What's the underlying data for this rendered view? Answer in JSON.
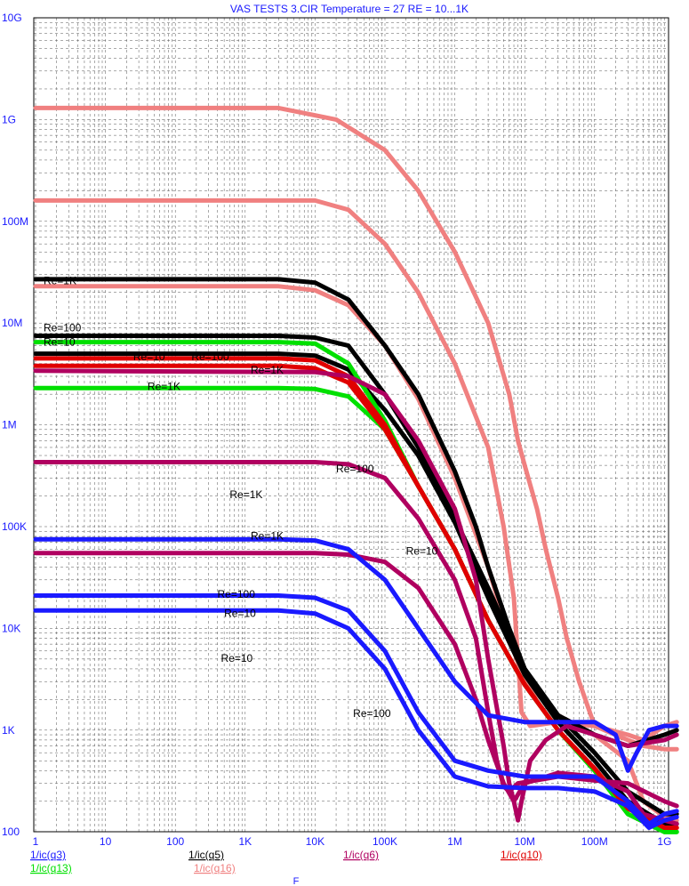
{
  "chart_data": {
    "type": "line",
    "title": "VAS TESTS 3.CIR Temperature = 27 RE = 10...1K",
    "xlabel": "F",
    "x_scale": "log",
    "y_scale": "log",
    "xlim": [
      1,
      1500000000
    ],
    "ylim": [
      100,
      10000000000
    ],
    "x_ticks": [
      "1",
      "10",
      "100",
      "1K",
      "10K",
      "100K",
      "1M",
      "10M",
      "100M",
      "1G"
    ],
    "y_ticks": [
      "10G",
      "1G",
      "100M",
      "10M",
      "1M",
      "100K",
      "10K",
      "1K",
      "100"
    ],
    "grid": true,
    "legend": [
      {
        "text": "1/ic(q3)",
        "color": "#1a1aff"
      },
      {
        "text": "1/ic(q5)",
        "color": "#000000"
      },
      {
        "text": "1/ic(q6)",
        "color": "#b00060"
      },
      {
        "text": "1/ic(q10)",
        "color": "#e00000"
      },
      {
        "text": "1/ic(q13)",
        "color": "#00e000"
      },
      {
        "text": "1/ic(q16)",
        "color": "#f08080"
      }
    ],
    "annotations": [
      {
        "text": "Re=1K",
        "x": 1.3,
        "y": 24000000
      },
      {
        "text": "Re=100",
        "x": 1.3,
        "y": 8300000
      },
      {
        "text": "Re=10",
        "x": 1.3,
        "y": 6000000
      },
      {
        "text": "Re=10",
        "x": 25,
        "y": 4300000
      },
      {
        "text": "Re=100",
        "x": 170,
        "y": 4300000
      },
      {
        "text": "Re=1K",
        "x": 1200,
        "y": 3200000
      },
      {
        "text": "Re=1K",
        "x": 40,
        "y": 2200000
      },
      {
        "text": "Re=100",
        "x": 20000,
        "y": 340000
      },
      {
        "text": "Re=1K",
        "x": 600,
        "y": 190000
      },
      {
        "text": "Re=1K",
        "x": 1200,
        "y": 75000
      },
      {
        "text": "Re=10",
        "x": 200000,
        "y": 53000
      },
      {
        "text": "Re=100",
        "x": 400,
        "y": 20000
      },
      {
        "text": "Re=10",
        "x": 500,
        "y": 13000
      },
      {
        "text": "Re=10",
        "x": 450,
        "y": 4700
      },
      {
        "text": "Re=100",
        "x": 35000,
        "y": 1350
      }
    ],
    "series": [
      {
        "color": "#f08080",
        "points": [
          [
            1,
            1300000000
          ],
          [
            3000,
            1300000000
          ],
          [
            20000,
            1000000000
          ],
          [
            100000,
            500000000
          ],
          [
            300000,
            200000000
          ],
          [
            1000000,
            50000000
          ],
          [
            3000000,
            10000000
          ],
          [
            6000000,
            2000000
          ],
          [
            8000000,
            700000
          ],
          [
            10000000,
            400000
          ],
          [
            15000000,
            150000
          ],
          [
            20000000,
            60000
          ],
          [
            30000000,
            20000
          ],
          [
            40000000,
            8000
          ],
          [
            60000000,
            3000
          ],
          [
            100000000,
            1100
          ],
          [
            300000000,
            800
          ],
          [
            500000000,
            700
          ],
          [
            1000000000,
            650
          ],
          [
            1500000000,
            650
          ]
        ]
      },
      {
        "color": "#f08080",
        "points": [
          [
            1,
            160000000
          ],
          [
            10000,
            160000000
          ],
          [
            30000,
            130000000
          ],
          [
            100000,
            60000000
          ],
          [
            300000,
            20000000
          ],
          [
            1000000,
            4000000
          ],
          [
            3000000,
            600000
          ],
          [
            5000000,
            100000
          ],
          [
            7000000,
            20000
          ],
          [
            8000000,
            5000
          ],
          [
            9000000,
            1500
          ],
          [
            12000000,
            1100
          ],
          [
            30000000,
            1200
          ],
          [
            100000000,
            1100
          ],
          [
            300000000,
            900
          ],
          [
            500000000,
            800
          ],
          [
            1000000000,
            1100
          ],
          [
            1500000000,
            1200
          ]
        ]
      },
      {
        "color": "#f08080",
        "points": [
          [
            1,
            23000000
          ],
          [
            3000,
            23000000
          ],
          [
            10000,
            21000000
          ],
          [
            30000,
            15000000
          ],
          [
            100000,
            6000000
          ],
          [
            300000,
            1800000
          ],
          [
            1000000,
            300000
          ],
          [
            3000000,
            40000
          ],
          [
            6000000,
            8000
          ],
          [
            10000000,
            3000
          ],
          [
            30000000,
            1400
          ],
          [
            100000000,
            900
          ],
          [
            300000000,
            500
          ],
          [
            500000000,
            200
          ],
          [
            1000000000,
            140
          ],
          [
            1500000000,
            130
          ]
        ]
      },
      {
        "color": "#000000",
        "points": [
          [
            1,
            27000000
          ],
          [
            3000,
            27000000
          ],
          [
            10000,
            25000000
          ],
          [
            30000,
            17000000
          ],
          [
            100000,
            6000000
          ],
          [
            300000,
            2000000
          ],
          [
            1000000,
            350000
          ],
          [
            2000000,
            100000
          ],
          [
            3000000,
            40000
          ],
          [
            6000000,
            10000
          ],
          [
            10000000,
            4000
          ],
          [
            30000000,
            1400
          ],
          [
            100000000,
            900
          ],
          [
            300000000,
            700
          ],
          [
            1000000000,
            900
          ],
          [
            1500000000,
            1000
          ]
        ]
      },
      {
        "color": "#000000",
        "points": [
          [
            1,
            7500000
          ],
          [
            3000,
            7500000
          ],
          [
            10000,
            7200000
          ],
          [
            30000,
            6000000
          ],
          [
            100000,
            2000000
          ],
          [
            300000,
            600000
          ],
          [
            1000000,
            120000
          ],
          [
            3000000,
            25000
          ],
          [
            10000000,
            4000
          ],
          [
            30000000,
            1400
          ],
          [
            100000000,
            600
          ],
          [
            300000000,
            250
          ],
          [
            1000000000,
            150
          ],
          [
            1500000000,
            150
          ]
        ]
      },
      {
        "color": "#000000",
        "points": [
          [
            1,
            5000000
          ],
          [
            3000,
            5000000
          ],
          [
            10000,
            4800000
          ],
          [
            30000,
            3500000
          ],
          [
            100000,
            1400000
          ],
          [
            300000,
            500000
          ],
          [
            1000000,
            110000
          ],
          [
            3000000,
            20000
          ],
          [
            10000000,
            3500
          ],
          [
            30000000,
            1200
          ],
          [
            100000000,
            500
          ],
          [
            300000000,
            200
          ],
          [
            1000000000,
            120
          ],
          [
            1500000000,
            120
          ]
        ]
      },
      {
        "color": "#00e000",
        "points": [
          [
            1,
            6500000
          ],
          [
            3000,
            6500000
          ],
          [
            10000,
            6300000
          ],
          [
            30000,
            4000000
          ],
          [
            100000,
            1100000
          ],
          [
            300000,
            250000
          ],
          [
            1000000,
            60000
          ],
          [
            3000000,
            12000
          ],
          [
            10000000,
            2800
          ],
          [
            30000000,
            1000
          ],
          [
            100000000,
            400
          ],
          [
            300000000,
            150
          ],
          [
            1000000000,
            100
          ],
          [
            1500000000,
            100
          ]
        ]
      },
      {
        "color": "#00e000",
        "points": [
          [
            1,
            2300000
          ],
          [
            3000,
            2300000
          ],
          [
            10000,
            2250000
          ],
          [
            30000,
            1900000
          ],
          [
            100000,
            900000
          ],
          [
            300000,
            250000
          ],
          [
            1000000,
            60000
          ],
          [
            3000000,
            12000
          ],
          [
            10000000,
            2800
          ],
          [
            30000000,
            1000
          ],
          [
            100000000,
            400
          ],
          [
            300000000,
            150
          ],
          [
            1000000000,
            100
          ],
          [
            1500000000,
            100
          ]
        ]
      },
      {
        "color": "#e00000",
        "points": [
          [
            1,
            4500000
          ],
          [
            3000,
            4500000
          ],
          [
            10000,
            4300000
          ],
          [
            30000,
            3000000
          ],
          [
            100000,
            1000000
          ],
          [
            300000,
            250000
          ],
          [
            1000000,
            60000
          ],
          [
            3000000,
            12000
          ],
          [
            10000000,
            2800
          ],
          [
            30000000,
            1000
          ],
          [
            100000000,
            420
          ],
          [
            300000000,
            170
          ],
          [
            1000000000,
            110
          ],
          [
            1500000000,
            110
          ]
        ]
      },
      {
        "color": "#e00000",
        "points": [
          [
            1,
            3800000
          ],
          [
            3000,
            3800000
          ],
          [
            10000,
            3600000
          ],
          [
            30000,
            2600000
          ],
          [
            100000,
            900000
          ],
          [
            300000,
            250000
          ],
          [
            1000000,
            60000
          ],
          [
            3000000,
            12000
          ],
          [
            10000000,
            2800
          ],
          [
            30000000,
            1000
          ],
          [
            100000000,
            420
          ],
          [
            300000000,
            170
          ],
          [
            1000000000,
            110
          ],
          [
            1500000000,
            110
          ]
        ]
      },
      {
        "color": "#b00060",
        "points": [
          [
            1,
            3400000
          ],
          [
            10000,
            3300000
          ],
          [
            30000,
            3000000
          ],
          [
            100000,
            2000000
          ],
          [
            300000,
            700000
          ],
          [
            1000000,
            150000
          ],
          [
            2000000,
            30000
          ],
          [
            3000000,
            5000
          ],
          [
            5000000,
            700
          ],
          [
            6000000,
            300
          ],
          [
            7000000,
            200
          ],
          [
            10000000,
            300
          ],
          [
            30000000,
            380
          ],
          [
            100000000,
            350
          ],
          [
            300000000,
            250
          ],
          [
            500000000,
            150
          ],
          [
            1000000000,
            130
          ],
          [
            1500000000,
            120
          ]
        ]
      },
      {
        "color": "#b00060",
        "points": [
          [
            1,
            430000
          ],
          [
            10000,
            430000
          ],
          [
            30000,
            410000
          ],
          [
            100000,
            300000
          ],
          [
            300000,
            120000
          ],
          [
            1000000,
            30000
          ],
          [
            2000000,
            8000
          ],
          [
            3000000,
            1500
          ],
          [
            4000000,
            500
          ],
          [
            5000000,
            280
          ],
          [
            6000000,
            250
          ],
          [
            8000000,
            300
          ],
          [
            30000000,
            350
          ],
          [
            100000000,
            320
          ],
          [
            300000000,
            300
          ],
          [
            1000000000,
            200
          ],
          [
            1500000000,
            180
          ]
        ]
      },
      {
        "color": "#b00060",
        "points": [
          [
            1,
            55000
          ],
          [
            10000,
            55000
          ],
          [
            30000,
            53000
          ],
          [
            100000,
            45000
          ],
          [
            300000,
            25000
          ],
          [
            1000000,
            7000
          ],
          [
            2000000,
            2000
          ],
          [
            3000000,
            800
          ],
          [
            5000000,
            300
          ],
          [
            7000000,
            200
          ],
          [
            8000000,
            130
          ],
          [
            9000000,
            200
          ],
          [
            12000000,
            500
          ],
          [
            20000000,
            800
          ],
          [
            40000000,
            1100
          ],
          [
            100000000,
            900
          ],
          [
            300000000,
            700
          ],
          [
            1000000000,
            800
          ],
          [
            1500000000,
            900
          ]
        ]
      },
      {
        "color": "#1a1aff",
        "points": [
          [
            1,
            75000
          ],
          [
            3000,
            75000
          ],
          [
            10000,
            73000
          ],
          [
            30000,
            60000
          ],
          [
            100000,
            30000
          ],
          [
            300000,
            10000
          ],
          [
            1000000,
            3000
          ],
          [
            3000000,
            1400
          ],
          [
            10000000,
            1200
          ],
          [
            30000000,
            1200
          ],
          [
            100000000,
            1200
          ],
          [
            200000000,
            900
          ],
          [
            300000000,
            400
          ],
          [
            400000000,
            600
          ],
          [
            600000000,
            1000
          ],
          [
            1000000000,
            1100
          ],
          [
            1500000000,
            1100
          ]
        ]
      },
      {
        "color": "#1a1aff",
        "points": [
          [
            1,
            21000
          ],
          [
            3000,
            21000
          ],
          [
            10000,
            20000
          ],
          [
            30000,
            15000
          ],
          [
            100000,
            6000
          ],
          [
            300000,
            1500
          ],
          [
            1000000,
            500
          ],
          [
            3000000,
            400
          ],
          [
            10000000,
            350
          ],
          [
            30000000,
            350
          ],
          [
            100000000,
            350
          ],
          [
            300000000,
            200
          ],
          [
            600000000,
            120
          ],
          [
            1000000000,
            150
          ],
          [
            1500000000,
            160
          ]
        ]
      },
      {
        "color": "#1a1aff",
        "points": [
          [
            1,
            15000
          ],
          [
            3000,
            15000
          ],
          [
            10000,
            14000
          ],
          [
            30000,
            10000
          ],
          [
            100000,
            4000
          ],
          [
            300000,
            1000
          ],
          [
            1000000,
            350
          ],
          [
            3000000,
            280
          ],
          [
            10000000,
            270
          ],
          [
            30000000,
            270
          ],
          [
            100000000,
            250
          ],
          [
            300000000,
            180
          ],
          [
            600000000,
            110
          ],
          [
            1000000000,
            130
          ],
          [
            1500000000,
            140
          ]
        ]
      }
    ]
  }
}
